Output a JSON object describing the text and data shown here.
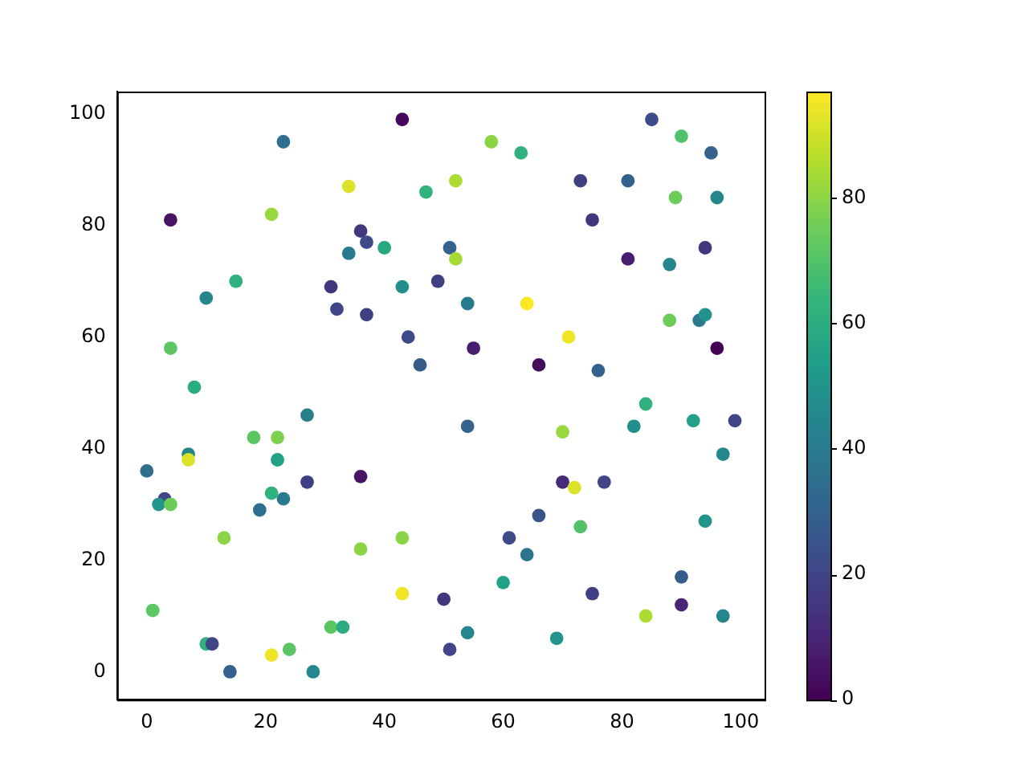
{
  "chart_data": {
    "type": "scatter",
    "xlim": [
      -5,
      104
    ],
    "ylim": [
      -5,
      104
    ],
    "xticks": [
      0,
      20,
      40,
      60,
      80,
      100
    ],
    "yticks": [
      0,
      20,
      40,
      60,
      80,
      100
    ],
    "clim": [
      0,
      97
    ],
    "cticks": [
      0,
      20,
      40,
      60,
      80
    ],
    "grid": false,
    "legend": false,
    "marker": "circle",
    "x": [
      43,
      85,
      23,
      58,
      63,
      90,
      95,
      34,
      52,
      73,
      81,
      47,
      89,
      96,
      4,
      21,
      36,
      37,
      40,
      34,
      51,
      75,
      43,
      31,
      32,
      37,
      81,
      88,
      52,
      94,
      10,
      15,
      49,
      54,
      64,
      71,
      44,
      55,
      66,
      76,
      93,
      94,
      88,
      96,
      4,
      8,
      46,
      54,
      27,
      18,
      22,
      22,
      7,
      7,
      0,
      27,
      36,
      3,
      2,
      4,
      19,
      23,
      21,
      13,
      36,
      43,
      43,
      1,
      10,
      11,
      14,
      28,
      24,
      21,
      31,
      33,
      84,
      82,
      92,
      99,
      97,
      70,
      70,
      72,
      77,
      61,
      64,
      66,
      73,
      60,
      75,
      84,
      90,
      90,
      94,
      97,
      69,
      54,
      50,
      51
    ],
    "values": [
      99,
      99,
      95,
      95,
      93,
      96,
      93,
      87,
      88,
      88,
      88,
      86,
      85,
      85,
      81,
      82,
      79,
      77,
      76,
      75,
      76,
      81,
      69,
      69,
      65,
      64,
      74,
      73,
      74,
      76,
      67,
      70,
      70,
      66,
      66,
      60,
      60,
      58,
      55,
      54,
      63,
      64,
      63,
      58,
      58,
      51,
      55,
      44,
      46,
      42,
      42,
      38,
      39,
      38,
      36,
      34,
      35,
      31,
      30,
      30,
      29,
      31,
      32,
      24,
      22,
      24,
      14,
      11,
      5,
      5,
      0,
      0,
      4,
      3,
      8,
      8,
      48,
      44,
      45,
      45,
      39,
      43,
      34,
      33,
      34,
      24,
      21,
      28,
      26,
      16,
      14,
      10,
      17,
      12,
      27,
      10,
      6,
      7,
      13,
      4
    ],
    "cvalues": [
      2,
      22,
      35,
      80,
      62,
      70,
      30,
      92,
      85,
      18,
      30,
      62,
      75,
      45,
      5,
      82,
      15,
      22,
      58,
      40,
      30,
      15,
      48,
      15,
      20,
      18,
      8,
      45,
      84,
      15,
      45,
      62,
      18,
      40,
      97,
      95,
      22,
      8,
      3,
      30,
      40,
      50,
      75,
      0,
      72,
      60,
      28,
      30,
      42,
      72,
      78,
      55,
      45,
      92,
      35,
      18,
      5,
      20,
      50,
      75,
      35,
      40,
      62,
      80,
      80,
      80,
      95,
      72,
      62,
      20,
      30,
      45,
      72,
      95,
      72,
      60,
      62,
      48,
      55,
      20,
      45,
      82,
      12,
      92,
      20,
      22,
      38,
      25,
      70,
      55,
      18,
      85,
      28,
      10,
      50,
      45,
      50,
      45,
      15,
      20
    ]
  }
}
